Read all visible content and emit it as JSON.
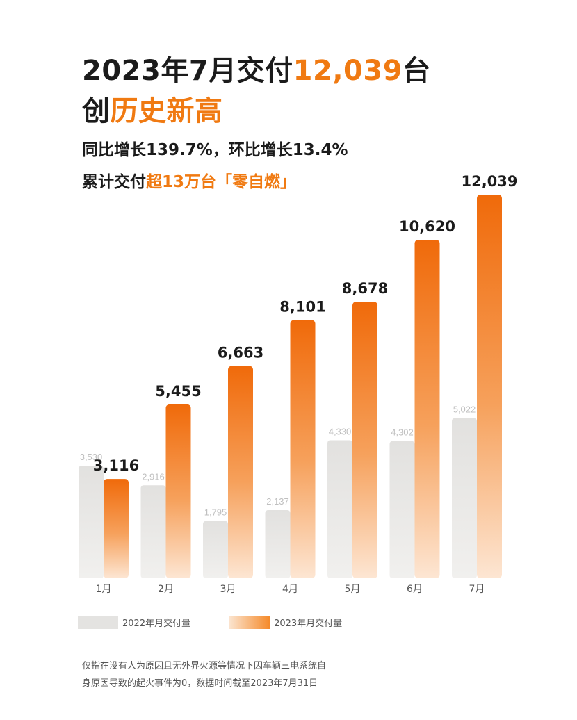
{
  "header": {
    "line1_prefix": "2023年7月交付",
    "line1_highlight": "12,039",
    "line1_suffix": "台",
    "line2_prefix": "创",
    "line2_highlight": "历史新高",
    "line3": "同比增长139.7%，环比增长13.4%",
    "line4_prefix": "累计交付",
    "line4_highlight": "超13万台「零自燃」"
  },
  "chart_data": {
    "type": "bar",
    "categories": [
      "1月",
      "2月",
      "3月",
      "4月",
      "5月",
      "6月",
      "7月"
    ],
    "series": [
      {
        "name": "2022年月交付量",
        "values": [
          3530,
          2916,
          1795,
          2137,
          4330,
          4302,
          5022
        ],
        "labels": [
          "3,530",
          "2,916",
          "1,795",
          "2,137",
          "4,330",
          "4,302",
          "5,022"
        ],
        "color": "#e4e3e1"
      },
      {
        "name": "2023年月交付量",
        "values": [
          3116,
          5455,
          6663,
          8101,
          8678,
          10620,
          12039
        ],
        "labels": [
          "3,116",
          "5,455",
          "6,663",
          "8,101",
          "8,678",
          "10,620",
          "12,039"
        ],
        "color": "#f07a12"
      }
    ],
    "legend": "bottom-left"
  },
  "legend": {
    "item_2022": "2022年月交付量",
    "item_2023": "2023年月交付量"
  },
  "footnote": {
    "line1": "仅指在没有人为原因且无外界火源等情况下因车辆三电系统自",
    "line2": "身原因导致的起火事件为0，数据时间截至2023年7月31日"
  }
}
